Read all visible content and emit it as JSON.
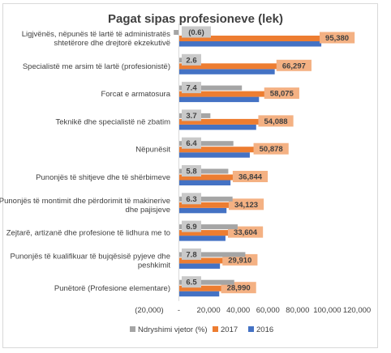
{
  "chart_data": {
    "type": "bar",
    "orientation": "horizontal",
    "title": "Pagat sipas profesioneve (lek)",
    "categories": [
      [
        "Ligjvënës, nëpunës të lartë të administratës",
        "shtetërore dhe drejtorë ekzekutivë"
      ],
      [
        "Specialistë me arsim të lartë (profesionistë)"
      ],
      [
        "Forcat e armatosura"
      ],
      [
        "Teknikë dhe specialistë në zbatim"
      ],
      [
        "Nëpunësit"
      ],
      [
        "Punonjës të shitjeve dhe të shërbimeve"
      ],
      [
        "Punonjës të montimit dhe përdorimit të makinerive",
        "dhe pajisjeve"
      ],
      [
        "Zejtarë, artizanë dhe profesione të lidhura me to"
      ],
      [
        "Punonjës të kualifikuar të bujqësisë pyjeve dhe",
        "peshkimit"
      ],
      [
        "Punëtorë (Profesione elementare)"
      ]
    ],
    "series": [
      {
        "name": "Ndryshimi vjetor (%)",
        "color": "#a5a5a5",
        "values": [
          -0.6,
          2.6,
          7.4,
          3.7,
          6.4,
          5.8,
          6.3,
          6.9,
          7.8,
          6.5
        ],
        "labels": [
          "(0.6)",
          "2.6",
          "7.4",
          "3.7",
          "6.4",
          "5.8",
          "6.3",
          "6.9",
          "7.8",
          "6.5"
        ]
      },
      {
        "name": "2017",
        "color": "#ed7d31",
        "values": [
          95380,
          66297,
          58075,
          54088,
          50878,
          36844,
          34123,
          33604,
          29910,
          28990
        ],
        "labels": [
          "95,380",
          "66,297",
          "58,075",
          "54,088",
          "50,878",
          "36,844",
          "34,123",
          "33,604",
          "29,910",
          "28,990"
        ]
      },
      {
        "name": "2016",
        "color": "#4472c4",
        "values": [
          96000,
          64600,
          54000,
          52100,
          47800,
          34800,
          32100,
          31400,
          27700,
          27200
        ]
      }
    ],
    "xlim": [
      -20000,
      120000
    ],
    "xticks": [
      -20000,
      0,
      20000,
      40000,
      60000,
      80000,
      100000,
      120000
    ],
    "xtick_labels": [
      "(20,000)",
      "-",
      "20,000",
      "40,000",
      "60,000",
      "80,000",
      "100,000",
      "120,000"
    ],
    "gridlines": false,
    "legend_position": "bottom"
  }
}
